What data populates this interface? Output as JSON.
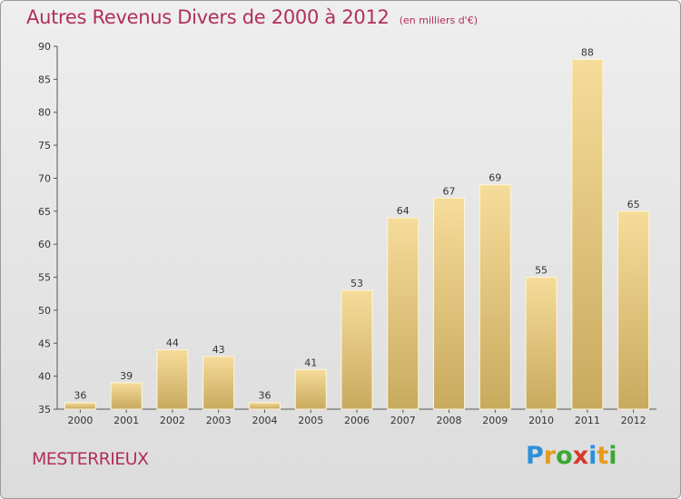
{
  "header": {
    "title": "Autres Revenus Divers de 2000 à 2012",
    "subtitle": "(en milliers d'€)"
  },
  "footer": {
    "commune": "MESTERRIEUX",
    "logo": {
      "letters": [
        "P",
        "r",
        "o",
        "x",
        "i",
        "t",
        "i"
      ],
      "colors": [
        "#2f8fd8",
        "#e89a1e",
        "#3aa832",
        "#d83a2a",
        "#2f8fd8",
        "#e89a1e",
        "#3aa832"
      ]
    }
  },
  "chart_data": {
    "type": "bar",
    "title": "Autres Revenus Divers de 2000 à 2012",
    "subtitle": "(en milliers d'€)",
    "categories": [
      "2000",
      "2001",
      "2002",
      "2003",
      "2004",
      "2005",
      "2006",
      "2007",
      "2008",
      "2009",
      "2010",
      "2011",
      "2012"
    ],
    "values": [
      36,
      39,
      44,
      43,
      36,
      41,
      53,
      64,
      67,
      69,
      55,
      88,
      65
    ],
    "ylim": [
      35,
      90
    ],
    "yticks": [
      35,
      40,
      45,
      50,
      55,
      60,
      65,
      70,
      75,
      80,
      85,
      90
    ],
    "xlabel": "",
    "ylabel": "",
    "grid": false,
    "legend": "none",
    "bar_color_top": "#f6dc9a",
    "bar_color_bottom": "#c8aa5e"
  }
}
